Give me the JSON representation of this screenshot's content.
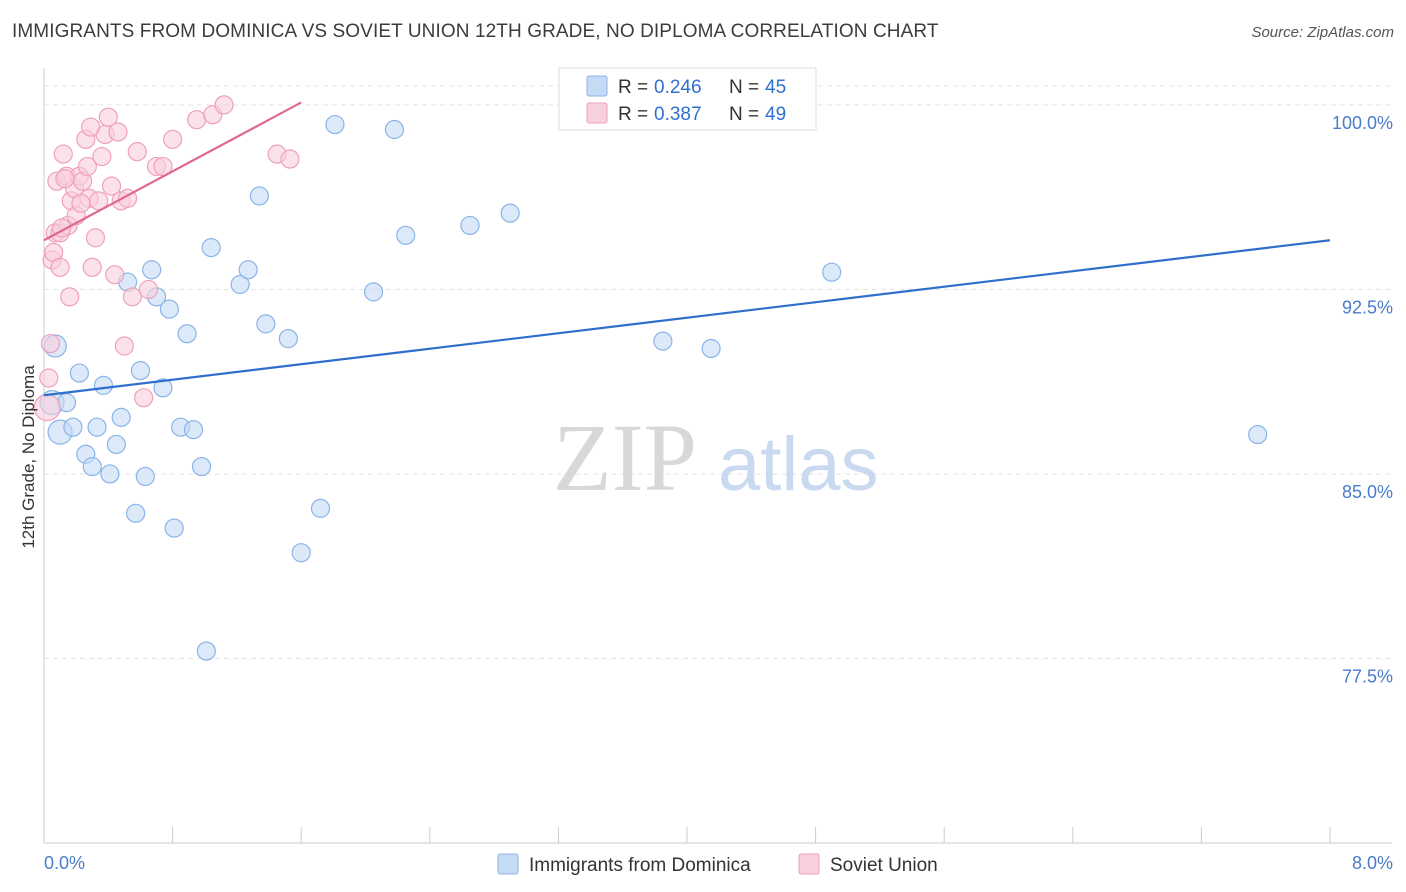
{
  "title": "IMMIGRANTS FROM DOMINICA VS SOVIET UNION 12TH GRADE, NO DIPLOMA CORRELATION CHART",
  "source": "Source: ZipAtlas.com",
  "watermark": {
    "zip": "ZIP",
    "atlas": "atlas"
  },
  "chart_data": {
    "type": "scatter",
    "xlabel": "",
    "ylabel": "12th Grade, No Diploma",
    "xlim": [
      0.0,
      8.0
    ],
    "ylim": [
      70.0,
      101.5
    ],
    "x_tick_labels": [
      "0.0%",
      "8.0%"
    ],
    "y_ticks": [
      77.5,
      85.0,
      92.5,
      100.0
    ],
    "y_tick_labels": [
      "77.5%",
      "85.0%",
      "92.5%",
      "100.0%"
    ],
    "grid": true,
    "legend": {
      "placement": "top-center",
      "entries": [
        {
          "r_label": "R = ",
          "r_value": "0.246",
          "n_label": "N = ",
          "n_value": "45"
        },
        {
          "r_label": "R = ",
          "r_value": "0.387",
          "n_label": "N = ",
          "n_value": "49"
        }
      ]
    },
    "series": [
      {
        "name": "Immigrants from Dominica",
        "color": "#8ab4e8",
        "fill": "#c5daf5",
        "line_color": "#2f6fcc",
        "trend": {
          "x": [
            0.0,
            8.0
          ],
          "y": [
            88.2,
            94.5
          ]
        },
        "points": [
          {
            "x": 0.05,
            "y": 87.9,
            "s": 12
          },
          {
            "x": 0.07,
            "y": 90.2,
            "s": 11
          },
          {
            "x": 0.1,
            "y": 86.7,
            "s": 12
          },
          {
            "x": 0.14,
            "y": 87.9,
            "s": 9
          },
          {
            "x": 0.18,
            "y": 86.9,
            "s": 9
          },
          {
            "x": 0.22,
            "y": 89.1,
            "s": 9
          },
          {
            "x": 0.26,
            "y": 85.8,
            "s": 9
          },
          {
            "x": 0.3,
            "y": 85.3,
            "s": 9
          },
          {
            "x": 0.33,
            "y": 86.9,
            "s": 9
          },
          {
            "x": 0.37,
            "y": 88.6,
            "s": 9
          },
          {
            "x": 0.41,
            "y": 85.0,
            "s": 9
          },
          {
            "x": 0.45,
            "y": 86.2,
            "s": 9
          },
          {
            "x": 0.48,
            "y": 87.3,
            "s": 9
          },
          {
            "x": 0.52,
            "y": 92.8,
            "s": 9
          },
          {
            "x": 0.57,
            "y": 83.4,
            "s": 9
          },
          {
            "x": 0.6,
            "y": 89.2,
            "s": 9
          },
          {
            "x": 0.63,
            "y": 84.9,
            "s": 9
          },
          {
            "x": 0.67,
            "y": 93.3,
            "s": 9
          },
          {
            "x": 0.7,
            "y": 92.2,
            "s": 9
          },
          {
            "x": 0.74,
            "y": 88.5,
            "s": 9
          },
          {
            "x": 0.78,
            "y": 91.7,
            "s": 9
          },
          {
            "x": 0.81,
            "y": 82.8,
            "s": 9
          },
          {
            "x": 0.85,
            "y": 86.9,
            "s": 9
          },
          {
            "x": 0.89,
            "y": 90.7,
            "s": 9
          },
          {
            "x": 0.93,
            "y": 86.8,
            "s": 9
          },
          {
            "x": 0.98,
            "y": 85.3,
            "s": 9
          },
          {
            "x": 1.01,
            "y": 77.8,
            "s": 9
          },
          {
            "x": 1.04,
            "y": 94.2,
            "s": 9
          },
          {
            "x": 1.22,
            "y": 92.7,
            "s": 9
          },
          {
            "x": 1.27,
            "y": 93.3,
            "s": 9
          },
          {
            "x": 1.34,
            "y": 96.3,
            "s": 9
          },
          {
            "x": 1.38,
            "y": 91.1,
            "s": 9
          },
          {
            "x": 1.52,
            "y": 90.5,
            "s": 9
          },
          {
            "x": 1.6,
            "y": 81.8,
            "s": 9
          },
          {
            "x": 1.72,
            "y": 83.6,
            "s": 9
          },
          {
            "x": 1.81,
            "y": 99.2,
            "s": 9
          },
          {
            "x": 2.05,
            "y": 92.4,
            "s": 9
          },
          {
            "x": 2.18,
            "y": 99.0,
            "s": 9
          },
          {
            "x": 2.25,
            "y": 94.7,
            "s": 9
          },
          {
            "x": 2.65,
            "y": 95.1,
            "s": 9
          },
          {
            "x": 2.9,
            "y": 95.6,
            "s": 9
          },
          {
            "x": 3.85,
            "y": 90.4,
            "s": 9
          },
          {
            "x": 4.15,
            "y": 90.1,
            "s": 9
          },
          {
            "x": 4.9,
            "y": 93.2,
            "s": 9
          },
          {
            "x": 7.55,
            "y": 86.6,
            "s": 9
          }
        ]
      },
      {
        "name": "Soviet Union",
        "color": "#f0a0bb",
        "fill": "#f8cfdc",
        "line_color": "#e0698f",
        "trend": {
          "x": [
            0.0,
            1.6
          ],
          "y": [
            94.5,
            100.1
          ]
        },
        "points": [
          {
            "x": 0.02,
            "y": 87.7,
            "s": 13
          },
          {
            "x": 0.03,
            "y": 88.9,
            "s": 9
          },
          {
            "x": 0.04,
            "y": 90.3,
            "s": 9
          },
          {
            "x": 0.05,
            "y": 93.7,
            "s": 9
          },
          {
            "x": 0.06,
            "y": 94.0,
            "s": 9
          },
          {
            "x": 0.07,
            "y": 94.8,
            "s": 9
          },
          {
            "x": 0.08,
            "y": 96.9,
            "s": 9
          },
          {
            "x": 0.1,
            "y": 94.8,
            "s": 9
          },
          {
            "x": 0.12,
            "y": 98.0,
            "s": 9
          },
          {
            "x": 0.14,
            "y": 97.1,
            "s": 9
          },
          {
            "x": 0.15,
            "y": 95.1,
            "s": 9
          },
          {
            "x": 0.17,
            "y": 96.1,
            "s": 9
          },
          {
            "x": 0.19,
            "y": 96.6,
            "s": 9
          },
          {
            "x": 0.2,
            "y": 95.5,
            "s": 9
          },
          {
            "x": 0.22,
            "y": 97.1,
            "s": 9
          },
          {
            "x": 0.24,
            "y": 96.9,
            "s": 9
          },
          {
            "x": 0.26,
            "y": 98.6,
            "s": 9
          },
          {
            "x": 0.28,
            "y": 96.2,
            "s": 9
          },
          {
            "x": 0.3,
            "y": 93.4,
            "s": 9
          },
          {
            "x": 0.32,
            "y": 94.6,
            "s": 9
          },
          {
            "x": 0.34,
            "y": 96.1,
            "s": 9
          },
          {
            "x": 0.36,
            "y": 97.9,
            "s": 9
          },
          {
            "x": 0.38,
            "y": 98.8,
            "s": 9
          },
          {
            "x": 0.4,
            "y": 99.5,
            "s": 9
          },
          {
            "x": 0.42,
            "y": 96.7,
            "s": 9
          },
          {
            "x": 0.44,
            "y": 93.1,
            "s": 9
          },
          {
            "x": 0.46,
            "y": 98.9,
            "s": 9
          },
          {
            "x": 0.48,
            "y": 96.1,
            "s": 9
          },
          {
            "x": 0.5,
            "y": 90.2,
            "s": 9
          },
          {
            "x": 0.52,
            "y": 96.2,
            "s": 9
          },
          {
            "x": 0.55,
            "y": 92.2,
            "s": 9
          },
          {
            "x": 0.58,
            "y": 98.1,
            "s": 9
          },
          {
            "x": 0.62,
            "y": 88.1,
            "s": 9
          },
          {
            "x": 0.65,
            "y": 92.5,
            "s": 9
          },
          {
            "x": 0.7,
            "y": 97.5,
            "s": 9
          },
          {
            "x": 0.74,
            "y": 97.5,
            "s": 9
          },
          {
            "x": 0.8,
            "y": 98.6,
            "s": 9
          },
          {
            "x": 0.95,
            "y": 99.4,
            "s": 9
          },
          {
            "x": 1.05,
            "y": 99.6,
            "s": 9
          },
          {
            "x": 1.12,
            "y": 100.0,
            "s": 9
          },
          {
            "x": 1.45,
            "y": 98.0,
            "s": 9
          },
          {
            "x": 1.53,
            "y": 97.8,
            "s": 9
          },
          {
            "x": 0.16,
            "y": 92.2,
            "s": 9
          },
          {
            "x": 0.27,
            "y": 97.5,
            "s": 9
          },
          {
            "x": 0.1,
            "y": 93.4,
            "s": 9
          },
          {
            "x": 0.11,
            "y": 95.0,
            "s": 9
          },
          {
            "x": 0.13,
            "y": 97.0,
            "s": 9
          },
          {
            "x": 0.23,
            "y": 96.0,
            "s": 9
          },
          {
            "x": 0.29,
            "y": 99.1,
            "s": 9
          }
        ]
      }
    ]
  }
}
